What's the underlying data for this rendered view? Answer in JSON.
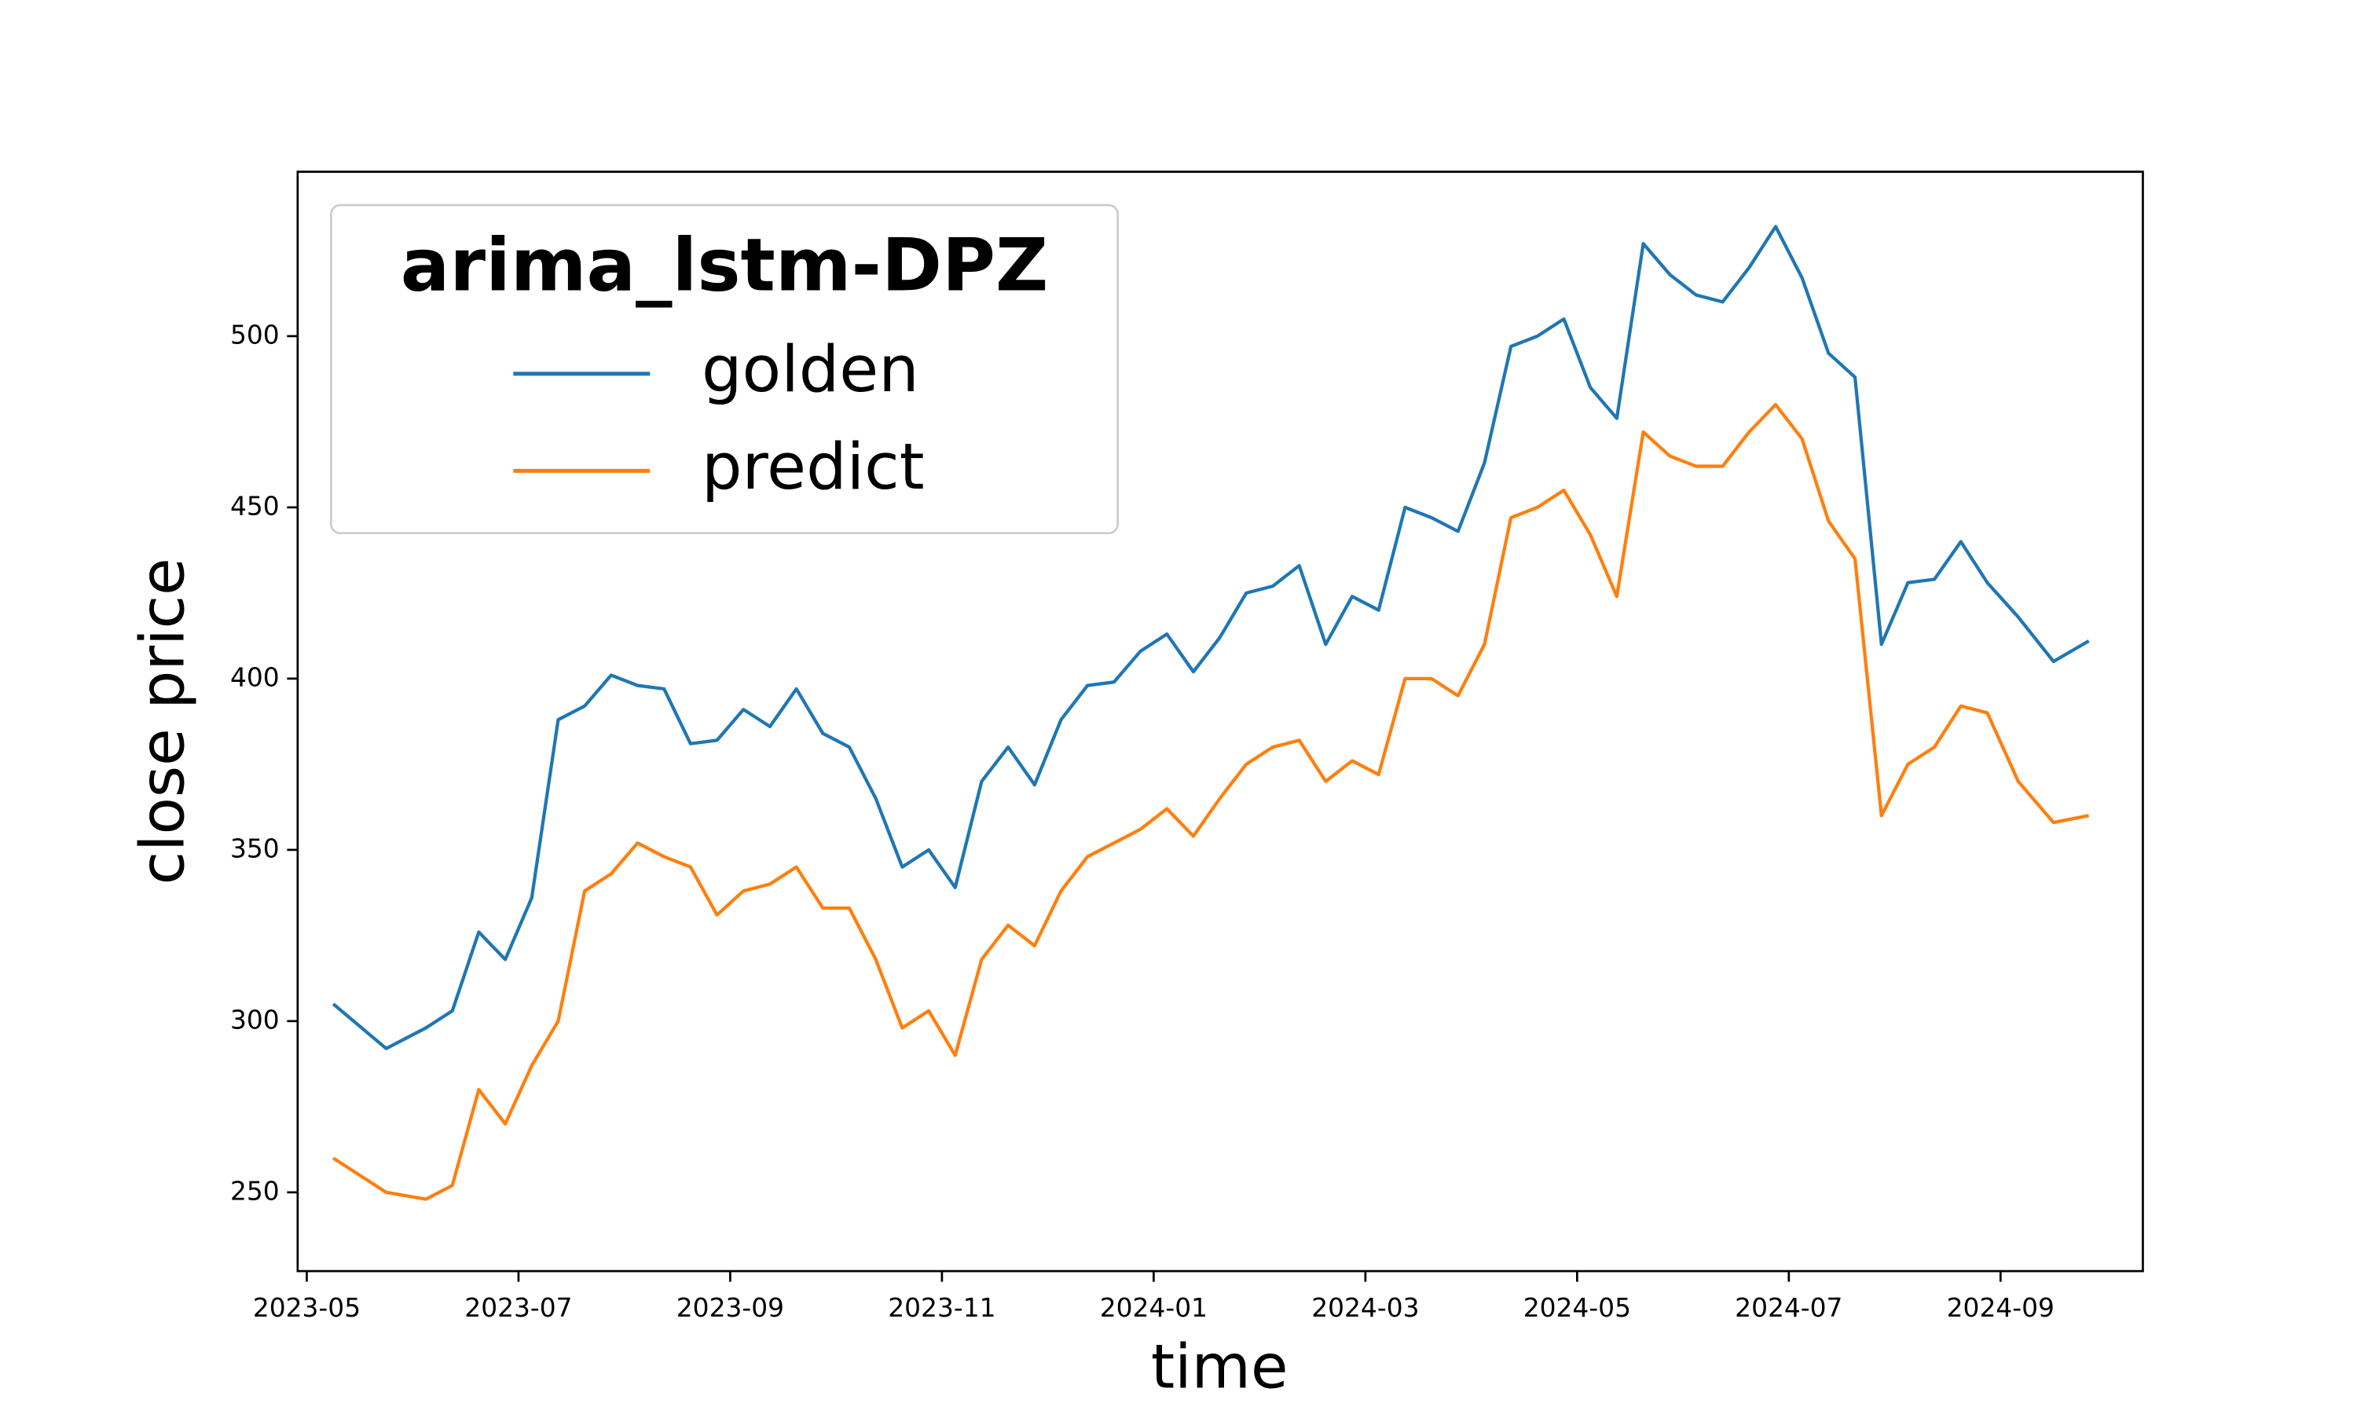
{
  "chart_data": {
    "type": "line",
    "legend_title": "arima_lstm-DPZ",
    "xlabel": "time",
    "ylabel": "close price",
    "legend": "upper left",
    "x": [
      "2023-05",
      "2023-05",
      "2023-06",
      "2023-06",
      "2023-06",
      "2023-06",
      "2023-07",
      "2023-07",
      "2023-07",
      "2023-07",
      "2023-08",
      "2023-08",
      "2023-08",
      "2023-08",
      "2023-09",
      "2023-09",
      "2023-09",
      "2023-09",
      "2023-10",
      "2023-10",
      "2023-10",
      "2023-10",
      "2023-11",
      "2023-11",
      "2023-11",
      "2023-11",
      "2023-12",
      "2023-12",
      "2023-12",
      "2023-12",
      "2024-01",
      "2024-01",
      "2024-01",
      "2024-01",
      "2024-02",
      "2024-02",
      "2024-02",
      "2024-02",
      "2024-03",
      "2024-03",
      "2024-03",
      "2024-03",
      "2024-04",
      "2024-04",
      "2024-04",
      "2024-04",
      "2024-05",
      "2024-05",
      "2024-05",
      "2024-05",
      "2024-06",
      "2024-06",
      "2024-06",
      "2024-06",
      "2024-07",
      "2024-07",
      "2024-07",
      "2024-07",
      "2024-08",
      "2024-08",
      "2024-08",
      "2024-08",
      "2024-09",
      "2024-09",
      "2024-09"
    ],
    "series": [
      {
        "name": "golden",
        "color": "#1f77b4",
        "values": [
          305,
          292,
          298,
          303,
          326,
          318,
          336,
          388,
          392,
          401,
          398,
          397,
          381,
          382,
          391,
          386,
          397,
          384,
          380,
          365,
          345,
          350,
          339,
          370,
          380,
          369,
          388,
          398,
          399,
          408,
          413,
          402,
          412,
          425,
          427,
          433,
          410,
          424,
          420,
          450,
          447,
          443,
          463,
          497,
          500,
          505,
          485,
          476,
          527,
          518,
          512,
          510,
          520,
          532,
          517,
          495,
          488,
          410,
          428,
          429,
          440,
          428,
          418,
          405,
          411
        ]
      },
      {
        "name": "predict",
        "color": "#ff7f0e",
        "values": [
          260,
          250,
          248,
          252,
          280,
          270,
          287,
          300,
          338,
          343,
          352,
          348,
          345,
          331,
          338,
          340,
          345,
          333,
          333,
          318,
          298,
          303,
          290,
          318,
          328,
          322,
          338,
          348,
          352,
          356,
          362,
          354,
          365,
          375,
          380,
          382,
          370,
          376,
          372,
          400,
          400,
          395,
          410,
          447,
          450,
          455,
          442,
          424,
          472,
          465,
          462,
          462,
          472,
          480,
          470,
          446,
          435,
          360,
          375,
          380,
          392,
          390,
          370,
          358,
          360
        ]
      }
    ],
    "xlim": [
      "2023-05",
      "2024-10"
    ],
    "xticks": [
      "2023-05",
      "2023-07",
      "2023-09",
      "2023-11",
      "2024-01",
      "2024-03",
      "2024-05",
      "2024-07",
      "2024-09"
    ],
    "ylim": [
      227,
      548
    ],
    "yticks": [
      250,
      300,
      350,
      400,
      450,
      500
    ],
    "grid": false
  }
}
